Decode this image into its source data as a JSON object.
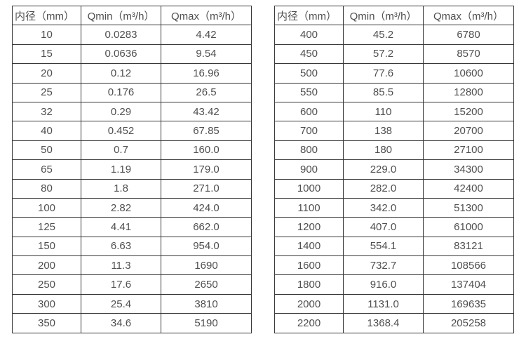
{
  "tables": [
    {
      "name": "flow-rate-table-small-diameters",
      "headers": [
        "内径（mm）",
        "Qmin（m³/h）",
        "Qmax（m³/h）"
      ],
      "rows": [
        [
          "10",
          "0.0283",
          "4.42"
        ],
        [
          "15",
          "0.0636",
          "9.54"
        ],
        [
          "20",
          "0.12",
          "16.96"
        ],
        [
          "25",
          "0.176",
          "26.5"
        ],
        [
          "32",
          "0.29",
          "43.42"
        ],
        [
          "40",
          "0.452",
          "67.85"
        ],
        [
          "50",
          "0.7",
          "160.0"
        ],
        [
          "65",
          "1.19",
          "179.0"
        ],
        [
          "80",
          "1.8",
          "271.0"
        ],
        [
          "100",
          "2.82",
          "424.0"
        ],
        [
          "125",
          "4.41",
          "662.0"
        ],
        [
          "150",
          "6.63",
          "954.0"
        ],
        [
          "200",
          "11.3",
          "1690"
        ],
        [
          "250",
          "17.6",
          "2650"
        ],
        [
          "300",
          "25.4",
          "3810"
        ],
        [
          "350",
          "34.6",
          "5190"
        ]
      ]
    },
    {
      "name": "flow-rate-table-large-diameters",
      "headers": [
        "内径（mm）",
        "Qmin（m³/h）",
        "Qmax（m³/h）"
      ],
      "rows": [
        [
          "400",
          "45.2",
          "6780"
        ],
        [
          "450",
          "57.2",
          "8570"
        ],
        [
          "500",
          "77.6",
          "10600"
        ],
        [
          "550",
          "85.5",
          "12800"
        ],
        [
          "600",
          "110",
          "15200"
        ],
        [
          "700",
          "138",
          "20700"
        ],
        [
          "800",
          "180",
          "27100"
        ],
        [
          "900",
          "229.0",
          "34300"
        ],
        [
          "1000",
          "282.0",
          "42400"
        ],
        [
          "1100",
          "342.0",
          "51300"
        ],
        [
          "1200",
          "407.0",
          "61000"
        ],
        [
          "1400",
          "554.1",
          "83121"
        ],
        [
          "1600",
          "732.7",
          "108566"
        ],
        [
          "1800",
          "916.0",
          "137404"
        ],
        [
          "2000",
          "1131.0",
          "169635"
        ],
        [
          "2200",
          "1368.4",
          "205258"
        ]
      ]
    }
  ],
  "colors": {
    "border": "#383838",
    "text": "#4f4f4f",
    "background": "#ffffff"
  }
}
